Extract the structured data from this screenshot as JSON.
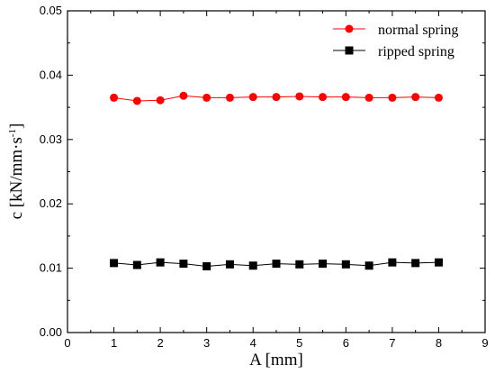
{
  "chart_data": {
    "type": "line",
    "xlabel": "A [mm]",
    "ylabel": "c [kN/mm·s",
    "ylabel_sup": "-1",
    "ylabel_close": "]",
    "xlim": [
      0,
      9
    ],
    "ylim": [
      0.0,
      0.05
    ],
    "xticks": [
      "0",
      "1",
      "2",
      "3",
      "4",
      "5",
      "6",
      "7",
      "8",
      "9"
    ],
    "yticks": [
      "0.00",
      "0.01",
      "0.02",
      "0.03",
      "0.04",
      "0.05"
    ],
    "grid": false,
    "legend_position": "top-right",
    "x": [
      1,
      1.5,
      2,
      2.5,
      3,
      3.5,
      4,
      4.5,
      5,
      5.5,
      6,
      6.5,
      7,
      7.5,
      8
    ],
    "series": [
      {
        "name": "normal spring",
        "marker": "circle",
        "color": "#ff0000",
        "values": [
          0.0365,
          0.036,
          0.0361,
          0.0368,
          0.0365,
          0.0365,
          0.0366,
          0.0366,
          0.0367,
          0.0366,
          0.0366,
          0.0365,
          0.0365,
          0.0366,
          0.0365
        ]
      },
      {
        "name": "ripped spring",
        "marker": "square",
        "color": "#000000",
        "values": [
          0.0108,
          0.0105,
          0.0109,
          0.0107,
          0.0103,
          0.0106,
          0.0104,
          0.0107,
          0.0106,
          0.0107,
          0.0106,
          0.0104,
          0.0109,
          0.0108,
          0.0109
        ]
      }
    ]
  }
}
